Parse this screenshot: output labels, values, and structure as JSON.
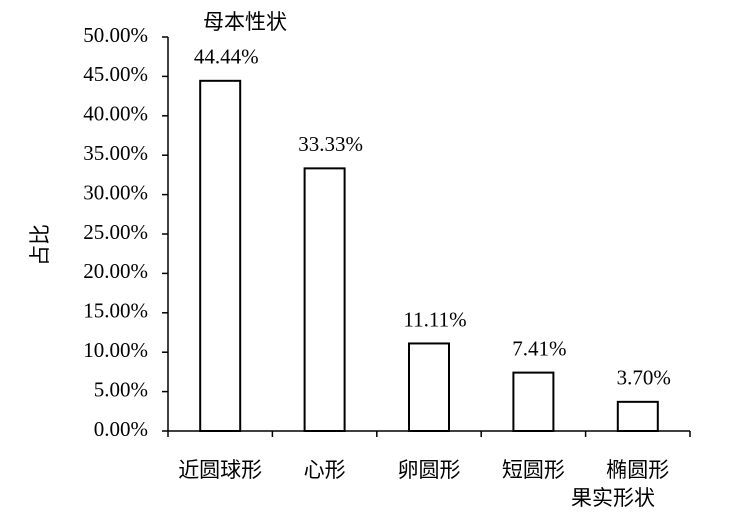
{
  "chart_data": {
    "type": "bar",
    "title": "母本性状",
    "x_label": "果实形状",
    "y_label": "占比",
    "categories": [
      "近圆球形",
      "心形",
      "卵圆形",
      "短圆形",
      "椭圆形"
    ],
    "values": [
      44.44,
      33.33,
      11.11,
      7.41,
      3.7
    ],
    "value_labels": [
      "44.44%",
      "33.33%",
      "11.11%",
      "7.41%",
      "3.70%"
    ],
    "color": "#ffffff",
    "ylim": [
      0,
      50
    ],
    "yticks": [
      {
        "value": 0,
        "label": "0.00%"
      },
      {
        "value": 5,
        "label": "5.00%"
      },
      {
        "value": 10,
        "label": "10.00%"
      },
      {
        "value": 15,
        "label": "15.00%"
      },
      {
        "value": 20,
        "label": "20.00%"
      },
      {
        "value": 25,
        "label": "25.00%"
      },
      {
        "value": 30,
        "label": "30.00%"
      },
      {
        "value": 35,
        "label": "35.00%"
      },
      {
        "value": 40,
        "label": "40.00%"
      },
      {
        "value": 45,
        "label": "45.00%"
      },
      {
        "value": 50,
        "label": "50.00%"
      }
    ],
    "grid": false
  }
}
